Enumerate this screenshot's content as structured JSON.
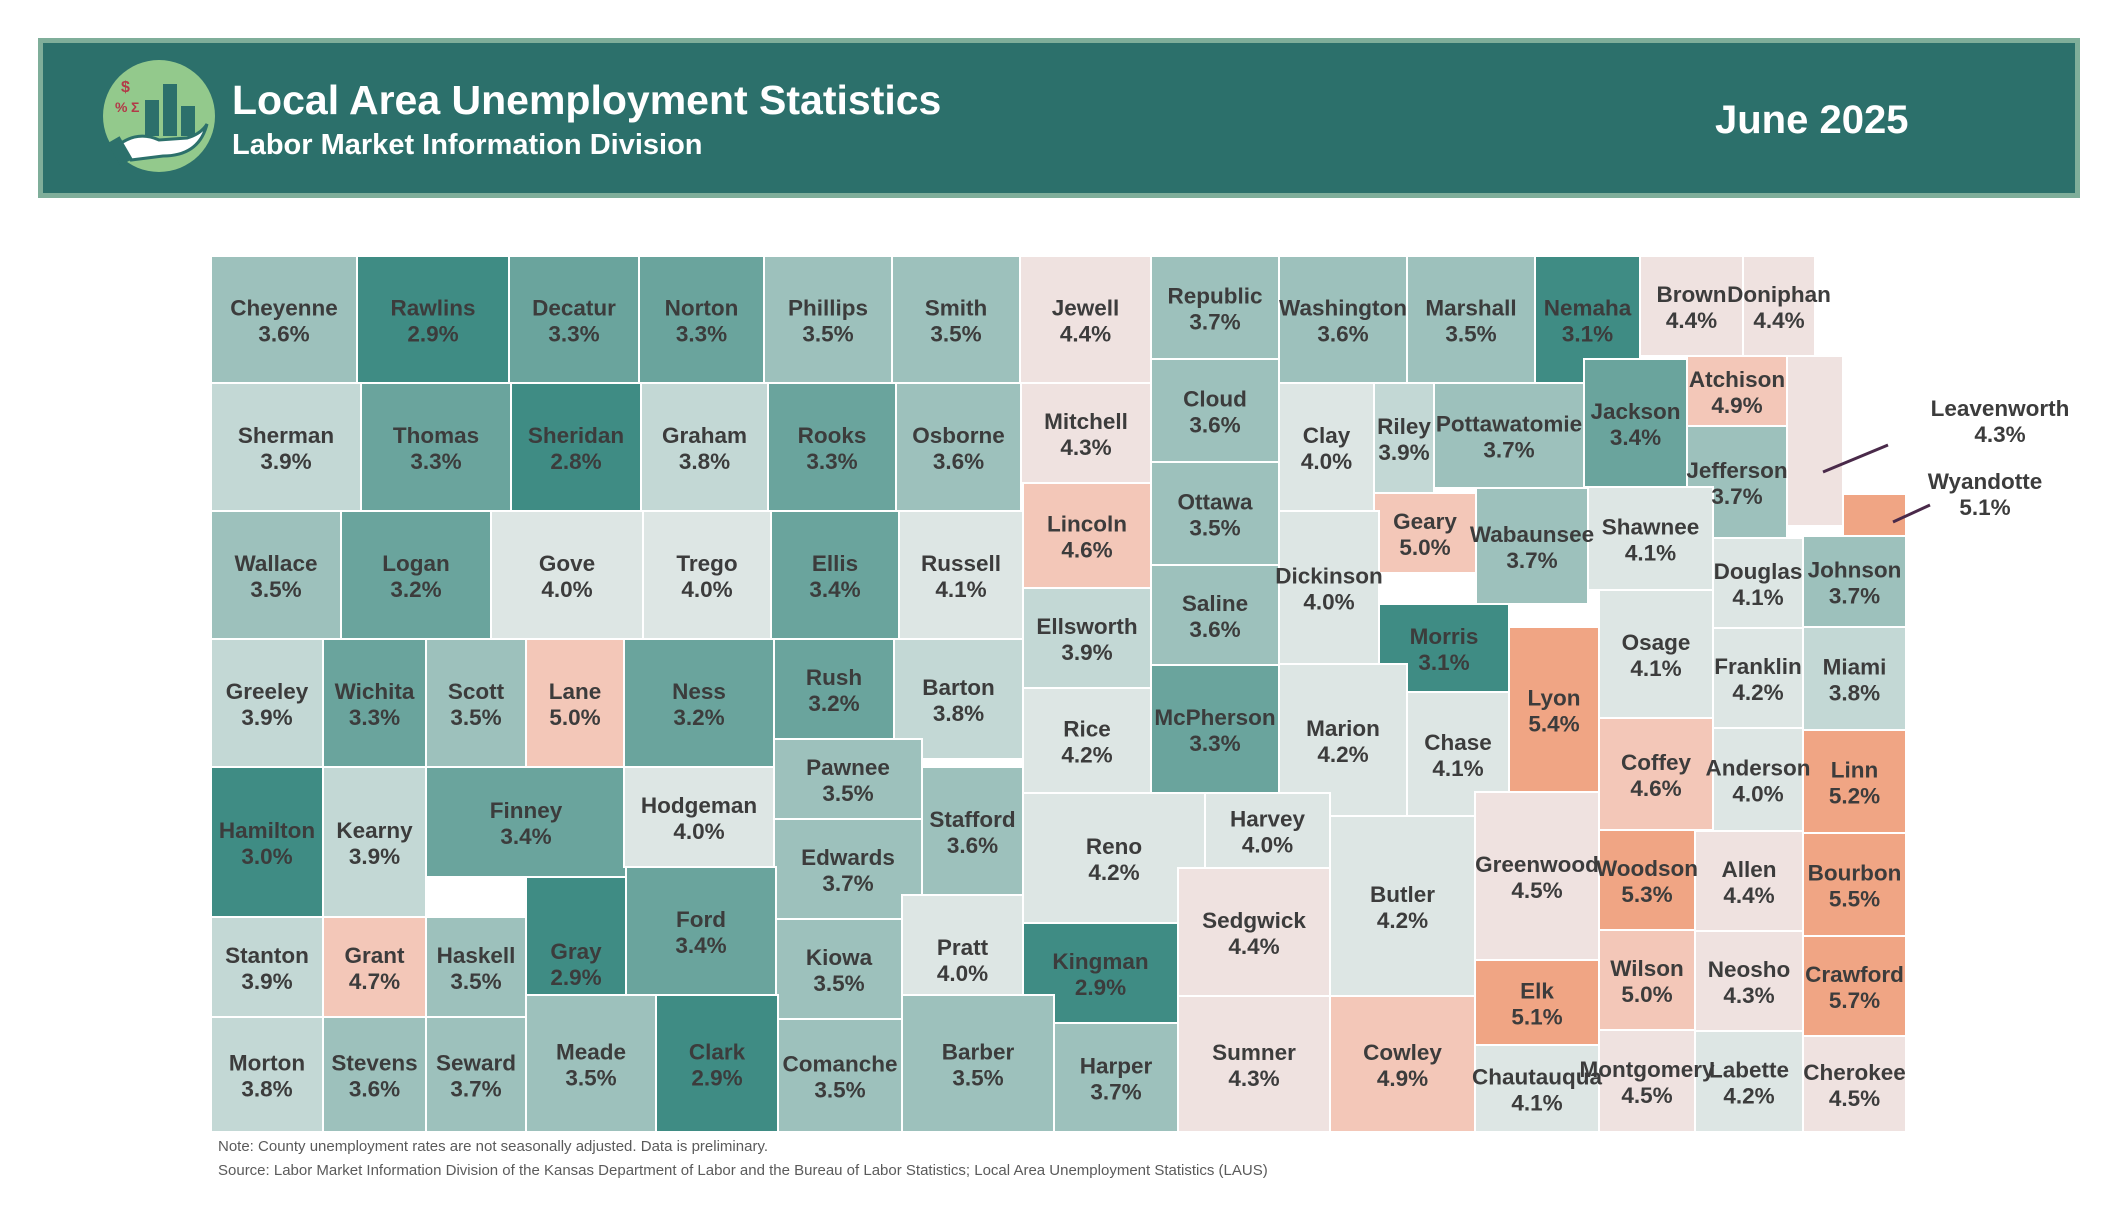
{
  "header": {
    "title": "Local Area Unemployment Statistics",
    "subtitle": "Labor Market Information Division",
    "period": "June 2025",
    "logo_icon": "money-chart-hand-icon"
  },
  "colors": {
    "header_bg": "#2c706b",
    "header_border": "#7fae9a",
    "logo_bg": "#93c98c",
    "scale": [
      "#3f8c84",
      "#6aa49d",
      "#9dc1bc",
      "#c3d8d5",
      "#dde6e4",
      "#efe2e0",
      "#f3c7b8",
      "#f0a584"
    ]
  },
  "counties": [
    {
      "name": "Cheyenne",
      "rate": "3.6%"
    },
    {
      "name": "Rawlins",
      "rate": "2.9%"
    },
    {
      "name": "Decatur",
      "rate": "3.3%"
    },
    {
      "name": "Norton",
      "rate": "3.3%"
    },
    {
      "name": "Phillips",
      "rate": "3.5%"
    },
    {
      "name": "Smith",
      "rate": "3.5%"
    },
    {
      "name": "Jewell",
      "rate": "4.4%"
    },
    {
      "name": "Republic",
      "rate": "3.7%"
    },
    {
      "name": "Washington",
      "rate": "3.6%"
    },
    {
      "name": "Marshall",
      "rate": "3.5%"
    },
    {
      "name": "Nemaha",
      "rate": "3.1%"
    },
    {
      "name": "Brown",
      "rate": "4.4%"
    },
    {
      "name": "Doniphan",
      "rate": "4.4%"
    },
    {
      "name": "Sherman",
      "rate": "3.9%"
    },
    {
      "name": "Thomas",
      "rate": "3.3%"
    },
    {
      "name": "Sheridan",
      "rate": "2.8%"
    },
    {
      "name": "Graham",
      "rate": "3.8%"
    },
    {
      "name": "Rooks",
      "rate": "3.3%"
    },
    {
      "name": "Osborne",
      "rate": "3.6%"
    },
    {
      "name": "Mitchell",
      "rate": "4.3%"
    },
    {
      "name": "Cloud",
      "rate": "3.6%"
    },
    {
      "name": "Clay",
      "rate": "4.0%"
    },
    {
      "name": "Riley",
      "rate": "3.9%"
    },
    {
      "name": "Pottawatomie",
      "rate": "3.7%"
    },
    {
      "name": "Jackson",
      "rate": "3.4%"
    },
    {
      "name": "Atchison",
      "rate": "4.9%"
    },
    {
      "name": "Leavenworth",
      "rate": "4.3%"
    },
    {
      "name": "Jefferson",
      "rate": "3.7%"
    },
    {
      "name": "Wyandotte",
      "rate": "5.1%"
    },
    {
      "name": "Wallace",
      "rate": "3.5%"
    },
    {
      "name": "Logan",
      "rate": "3.2%"
    },
    {
      "name": "Gove",
      "rate": "4.0%"
    },
    {
      "name": "Trego",
      "rate": "4.0%"
    },
    {
      "name": "Ellis",
      "rate": "3.4%"
    },
    {
      "name": "Russell",
      "rate": "4.1%"
    },
    {
      "name": "Lincoln",
      "rate": "4.6%"
    },
    {
      "name": "Ottawa",
      "rate": "3.5%"
    },
    {
      "name": "Geary",
      "rate": "5.0%"
    },
    {
      "name": "Wabaunsee",
      "rate": "3.7%"
    },
    {
      "name": "Shawnee",
      "rate": "4.1%"
    },
    {
      "name": "Douglas",
      "rate": "4.1%"
    },
    {
      "name": "Johnson",
      "rate": "3.7%"
    },
    {
      "name": "Dickinson",
      "rate": "4.0%"
    },
    {
      "name": "Saline",
      "rate": "3.6%"
    },
    {
      "name": "Ellsworth",
      "rate": "3.9%"
    },
    {
      "name": "Morris",
      "rate": "3.1%"
    },
    {
      "name": "Greeley",
      "rate": "3.9%"
    },
    {
      "name": "Wichita",
      "rate": "3.3%"
    },
    {
      "name": "Scott",
      "rate": "3.5%"
    },
    {
      "name": "Lane",
      "rate": "5.0%"
    },
    {
      "name": "Ness",
      "rate": "3.2%"
    },
    {
      "name": "Rush",
      "rate": "3.2%"
    },
    {
      "name": "Barton",
      "rate": "3.8%"
    },
    {
      "name": "Rice",
      "rate": "4.2%"
    },
    {
      "name": "McPherson",
      "rate": "3.3%"
    },
    {
      "name": "Marion",
      "rate": "4.2%"
    },
    {
      "name": "Chase",
      "rate": "4.1%"
    },
    {
      "name": "Lyon",
      "rate": "5.4%"
    },
    {
      "name": "Osage",
      "rate": "4.1%"
    },
    {
      "name": "Franklin",
      "rate": "4.2%"
    },
    {
      "name": "Miami",
      "rate": "3.8%"
    },
    {
      "name": "Pawnee",
      "rate": "3.5%"
    },
    {
      "name": "Hamilton",
      "rate": "3.0%"
    },
    {
      "name": "Kearny",
      "rate": "3.9%"
    },
    {
      "name": "Finney",
      "rate": "3.4%"
    },
    {
      "name": "Hodgeman",
      "rate": "4.0%"
    },
    {
      "name": "Stafford",
      "rate": "3.6%"
    },
    {
      "name": "Reno",
      "rate": "4.2%"
    },
    {
      "name": "Harvey",
      "rate": "4.0%"
    },
    {
      "name": "Coffey",
      "rate": "4.6%"
    },
    {
      "name": "Anderson",
      "rate": "4.0%"
    },
    {
      "name": "Linn",
      "rate": "5.2%"
    },
    {
      "name": "Edwards",
      "rate": "3.7%"
    },
    {
      "name": "Gray",
      "rate": "2.9%"
    },
    {
      "name": "Ford",
      "rate": "3.4%"
    },
    {
      "name": "Butler",
      "rate": "4.2%"
    },
    {
      "name": "Greenwood",
      "rate": "4.5%"
    },
    {
      "name": "Woodson",
      "rate": "5.3%"
    },
    {
      "name": "Allen",
      "rate": "4.4%"
    },
    {
      "name": "Bourbon",
      "rate": "5.5%"
    },
    {
      "name": "Stanton",
      "rate": "3.9%"
    },
    {
      "name": "Grant",
      "rate": "4.7%"
    },
    {
      "name": "Haskell",
      "rate": "3.5%"
    },
    {
      "name": "Pratt",
      "rate": "4.0%"
    },
    {
      "name": "Kiowa",
      "rate": "3.5%"
    },
    {
      "name": "Kingman",
      "rate": "2.9%"
    },
    {
      "name": "Sedgwick",
      "rate": "4.4%"
    },
    {
      "name": "Wilson",
      "rate": "5.0%"
    },
    {
      "name": "Neosho",
      "rate": "4.3%"
    },
    {
      "name": "Crawford",
      "rate": "5.7%"
    },
    {
      "name": "Elk",
      "rate": "5.1%"
    },
    {
      "name": "Morton",
      "rate": "3.8%"
    },
    {
      "name": "Stevens",
      "rate": "3.6%"
    },
    {
      "name": "Seward",
      "rate": "3.7%"
    },
    {
      "name": "Meade",
      "rate": "3.5%"
    },
    {
      "name": "Clark",
      "rate": "2.9%"
    },
    {
      "name": "Comanche",
      "rate": "3.5%"
    },
    {
      "name": "Barber",
      "rate": "3.5%"
    },
    {
      "name": "Harper",
      "rate": "3.7%"
    },
    {
      "name": "Sumner",
      "rate": "4.3%"
    },
    {
      "name": "Cowley",
      "rate": "4.9%"
    },
    {
      "name": "Chautauqua",
      "rate": "4.1%"
    },
    {
      "name": "Montgomery",
      "rate": "4.5%"
    },
    {
      "name": "Labette",
      "rate": "4.2%"
    },
    {
      "name": "Cherokee",
      "rate": "4.5%"
    }
  ],
  "notes": {
    "note1": "Note: County unemployment rates are not seasonally adjusted. Data is preliminary.",
    "note2": "Source: Labor Market Information Division of the Kansas Department of Labor and the Bureau of Labor Statistics; Local Area Unemployment Statistics (LAUS)"
  }
}
